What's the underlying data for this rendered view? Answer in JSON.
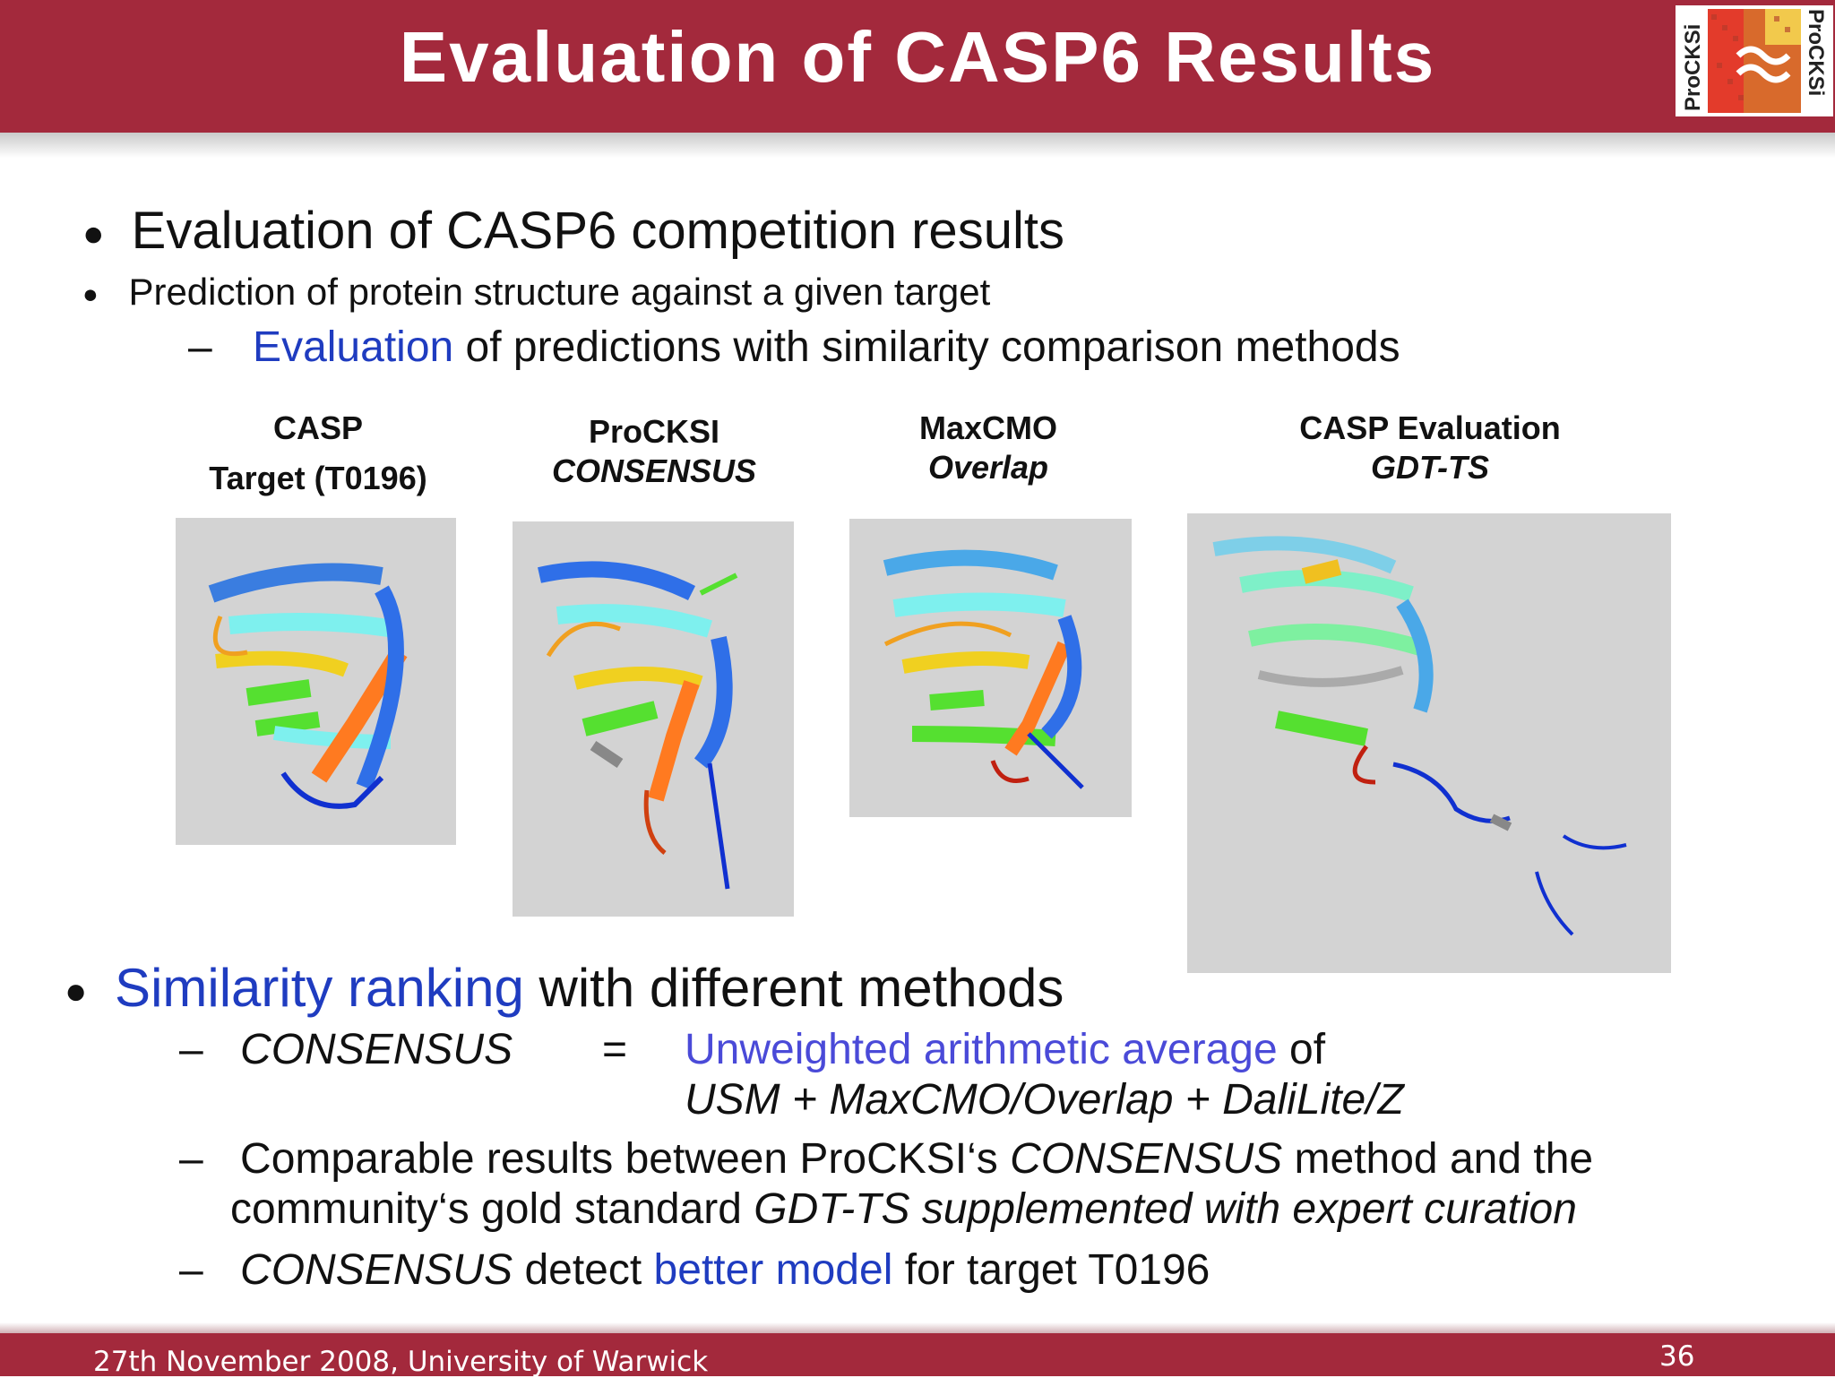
{
  "header": {
    "title": "Evaluation of CASP6 Results"
  },
  "logo": {
    "left_text": "ProCKSi",
    "right_text": "ProCKSi"
  },
  "bullets": {
    "b1": "Evaluation of CASP6 competition results",
    "b2": "Prediction of protein structure against a given target",
    "b3_dash": "–",
    "b3_blue": "Evaluation",
    "b3_rest": " of predictions with similarity comparison methods"
  },
  "captions": [
    {
      "line1": "CASP",
      "line2": "Target (T0196)"
    },
    {
      "line1": "ProCKSI",
      "line2": "CONSENSUS"
    },
    {
      "line1": "MaxCMO",
      "line2": "Overlap"
    },
    {
      "line1": "CASP Evaluation",
      "line2": "GDT-TS"
    }
  ],
  "ranking": {
    "head_blue": "Similarity ranking",
    "head_rest": " with different methods",
    "s1_dash": "–",
    "s1_term": "CONSENSUS",
    "s1_eq": "=",
    "s1_blue": "Unweighted arithmetic average",
    "s1_of": " of",
    "s1_formula": "USM + MaxCMO/Overlap + DaliLite/Z",
    "s2_dash": "–",
    "s2_a": "Comparable results between ProCKSI‘s ",
    "s2_b": "CONSENSUS",
    "s2_c": " method and the",
    "s2_d": "community‘s gold standard ",
    "s2_e": "GDT-TS supplemented with expert curation",
    "s3_dash": "–",
    "s3_a": "CONSENSUS",
    "s3_b": " detect ",
    "s3_c": "better model",
    "s3_d": " for target T0196"
  },
  "footer": {
    "left": "27th November 2008, University of Warwick",
    "page": "36"
  },
  "colors": {
    "header": "#a3293c",
    "accent_blue": "#1f3cc0",
    "panel_bg": "#d3d3d3"
  }
}
